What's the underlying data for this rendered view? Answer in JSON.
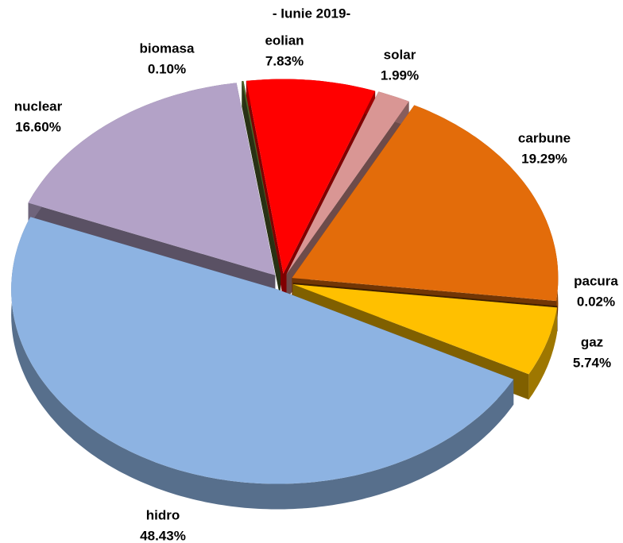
{
  "chart_data": {
    "type": "pie3d",
    "title": "- Iunie 2019-",
    "categories": [
      "eolian",
      "solar",
      "carbune",
      "pacura",
      "gaz",
      "hidro",
      "nuclear",
      "biomasa"
    ],
    "values": [
      7.83,
      1.99,
      19.29,
      0.02,
      5.74,
      48.43,
      16.6,
      0.1
    ],
    "value_labels": [
      "7.83%",
      "1.99%",
      "19.29%",
      "0.02%",
      "5.74%",
      "48.43%",
      "16.60%",
      "0.10%"
    ],
    "colors": [
      "#ff0000",
      "#d99694",
      "#e36c0a",
      "#7f3f00",
      "#ffc000",
      "#8db3e2",
      "#b3a2c7",
      "#4f6228"
    ]
  }
}
